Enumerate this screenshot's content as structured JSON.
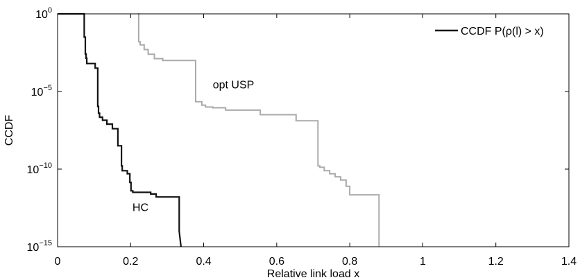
{
  "chart_data": {
    "type": "line",
    "xlabel": "Relative link load x",
    "ylabel": "CCDF",
    "xlim": [
      0,
      1.4
    ],
    "ylim": [
      1e-15,
      1
    ],
    "y_scale": "log",
    "grid": false,
    "x_ticks": [
      {
        "value": 0,
        "label": "0"
      },
      {
        "value": 0.2,
        "label": "0.2"
      },
      {
        "value": 0.4,
        "label": "0.4"
      },
      {
        "value": 0.6,
        "label": "0.6"
      },
      {
        "value": 0.8,
        "label": "0.8"
      },
      {
        "value": 1.0,
        "label": "1"
      },
      {
        "value": 1.2,
        "label": "1.2"
      },
      {
        "value": 1.4,
        "label": "1.4"
      }
    ],
    "y_ticks": [
      {
        "value": 1,
        "base": "10",
        "exp": "0"
      },
      {
        "value": 1e-05,
        "base": "10",
        "exp": "−5"
      },
      {
        "value": 1e-10,
        "base": "10",
        "exp": "−10"
      },
      {
        "value": 1e-15,
        "base": "10",
        "exp": "−15"
      }
    ],
    "legend": {
      "position": "top-right",
      "label": "CCDF P(ρ(l) > x)"
    },
    "annotations": [
      {
        "text": "opt USP",
        "x": 0.425,
        "y": 1.6e-05
      },
      {
        "text": "HC",
        "x": 0.205,
        "y": 2e-13
      }
    ],
    "series": [
      {
        "color": "#111111",
        "x": [
          0,
          0.073,
          0.073,
          0.076,
          0.076,
          0.078,
          0.078,
          0.08,
          0.08,
          0.103,
          0.103,
          0.11,
          0.11,
          0.112,
          0.112,
          0.115,
          0.115,
          0.123,
          0.123,
          0.135,
          0.135,
          0.15,
          0.15,
          0.165,
          0.165,
          0.175,
          0.175,
          0.177,
          0.177,
          0.191,
          0.191,
          0.198,
          0.198,
          0.201,
          0.201,
          0.206,
          0.206,
          0.255,
          0.255,
          0.27,
          0.27,
          0.333,
          0.333,
          0.338
        ],
        "y": [
          1,
          1,
          0.032,
          0.032,
          0.0026,
          0.0026,
          0.0014,
          0.0014,
          0.00063,
          0.00063,
          0.00032,
          0.00032,
          1.1e-06,
          1.1e-06,
          4e-07,
          4e-07,
          2.2e-07,
          2.2e-07,
          1.4e-07,
          1.4e-07,
          7.9e-08,
          7.9e-08,
          4e-08,
          4e-08,
          3.2e-09,
          3.2e-09,
          1.6e-10,
          1.6e-10,
          7.9e-11,
          7.9e-11,
          5e-11,
          5e-11,
          1.4e-11,
          1.4e-11,
          4e-12,
          4e-12,
          3.2e-12,
          3.2e-12,
          2.5e-12,
          2.5e-12,
          1.6e-12,
          1.6e-12,
          1e-14,
          1e-15
        ]
      },
      {
        "color": "#aaaaaa",
        "x": [
          0.22,
          0.222,
          0.222,
          0.226,
          0.226,
          0.237,
          0.237,
          0.248,
          0.248,
          0.265,
          0.265,
          0.288,
          0.288,
          0.378,
          0.378,
          0.395,
          0.395,
          0.405,
          0.405,
          0.425,
          0.425,
          0.46,
          0.46,
          0.555,
          0.555,
          0.653,
          0.653,
          0.713,
          0.713,
          0.718,
          0.718,
          0.73,
          0.73,
          0.745,
          0.745,
          0.76,
          0.76,
          0.775,
          0.775,
          0.79,
          0.79,
          0.8,
          0.8,
          0.88,
          0.88
        ],
        "y": [
          1,
          1,
          0.016,
          0.016,
          0.01,
          0.01,
          0.005,
          0.005,
          0.0025,
          0.0025,
          0.0013,
          0.0013,
          0.001,
          0.001,
          2.2e-06,
          2.2e-06,
          1.3e-06,
          1.3e-06,
          1e-06,
          1e-06,
          8.9e-07,
          8.9e-07,
          6.3e-07,
          6.3e-07,
          3.2e-07,
          3.2e-07,
          1.3e-07,
          1.3e-07,
          1.6e-10,
          1.6e-10,
          1.3e-10,
          1.3e-10,
          7.9e-11,
          7.9e-11,
          5e-11,
          5e-11,
          3.2e-11,
          3.2e-11,
          2e-11,
          2e-11,
          7.9e-12,
          7.9e-12,
          2.2e-12,
          2.2e-12,
          1e-15
        ]
      }
    ]
  }
}
